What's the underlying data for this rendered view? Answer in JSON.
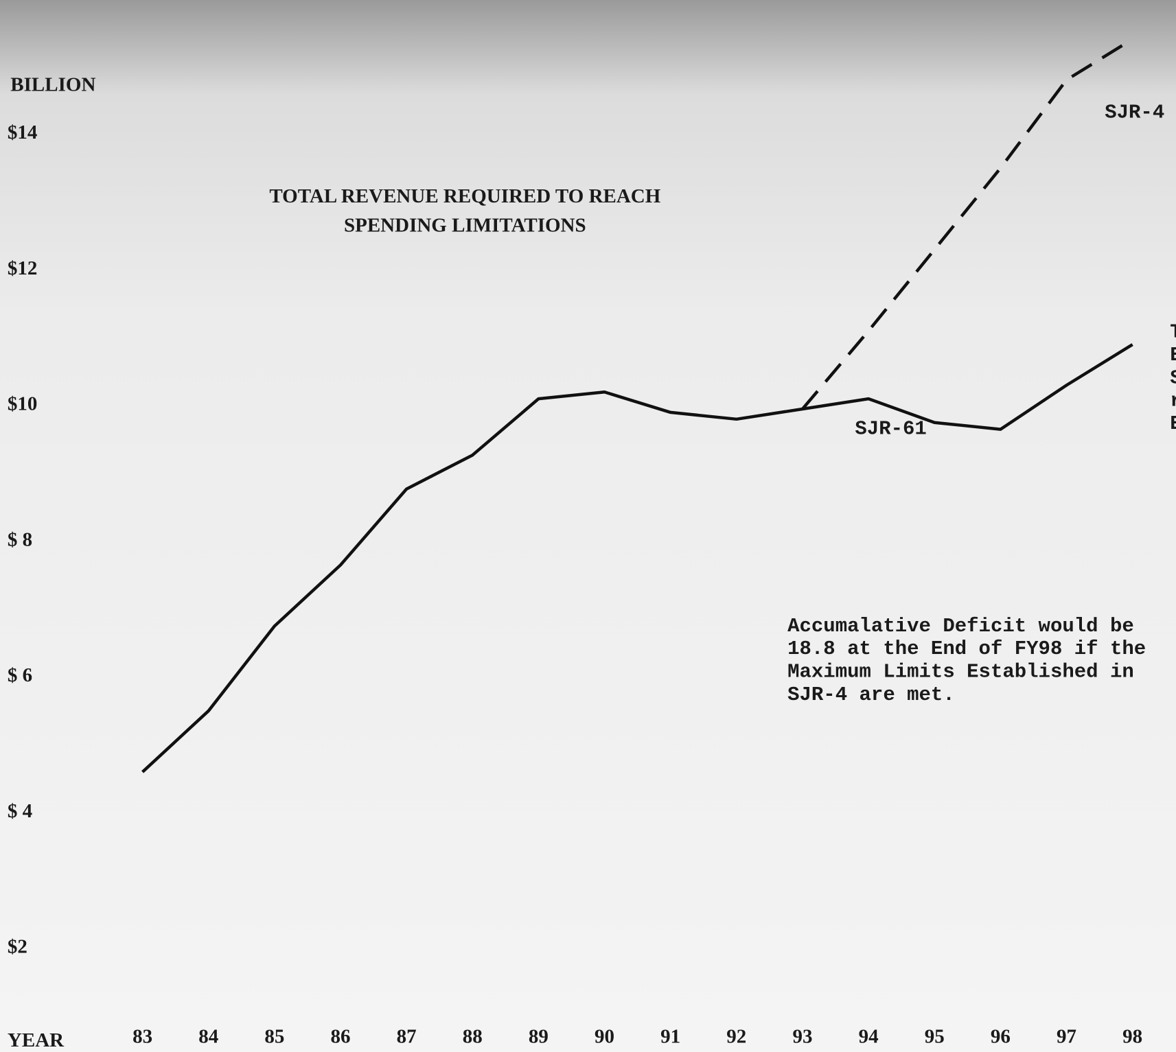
{
  "chart_data": {
    "type": "line",
    "title": [
      "TOTAL REVENUE REQUIRED TO REACH",
      "SPENDING LIMITATIONS"
    ],
    "y_label": "BILLION",
    "x_label": "YEAR",
    "categories": [
      "83",
      "84",
      "85",
      "86",
      "87",
      "88",
      "89",
      "90",
      "91",
      "92",
      "93",
      "94",
      "95",
      "96",
      "97",
      "98"
    ],
    "series": [
      {
        "name": "SJR-61",
        "color": "#111111",
        "dashed": false,
        "values": [
          4.6,
          5.5,
          6.75,
          7.65,
          8.77,
          9.27,
          10.1,
          10.2,
          9.9,
          9.8,
          9.95,
          10.1,
          9.75,
          9.65,
          10.3,
          10.9
        ]
      },
      {
        "name": "SJR-4",
        "color": "#111111",
        "dashed": true,
        "values": [
          null,
          null,
          null,
          null,
          null,
          null,
          null,
          null,
          null,
          null,
          9.95,
          11.1,
          12.3,
          13.5,
          14.8,
          15.4
        ]
      }
    ],
    "ylim": [
      0.4,
      16
    ],
    "yticks": [
      {
        "value": 14,
        "label": "$14"
      },
      {
        "value": 12,
        "label": "$12"
      },
      {
        "value": 10,
        "label": "$10"
      },
      {
        "value": 8,
        "label": "$ 8"
      },
      {
        "value": 6,
        "label": "$ 6"
      },
      {
        "value": 4,
        "label": "$ 4"
      },
      {
        "value": 2,
        "label": "$2"
      }
    ],
    "annotations": [
      "Accumalative Deficit would be",
      "18.8 at the End of FY98 if the",
      "Maximum Limits Established in",
      "SJR-4 are met."
    ],
    "edge_fragments": [
      "T",
      "E",
      "S",
      "r",
      "E"
    ]
  }
}
